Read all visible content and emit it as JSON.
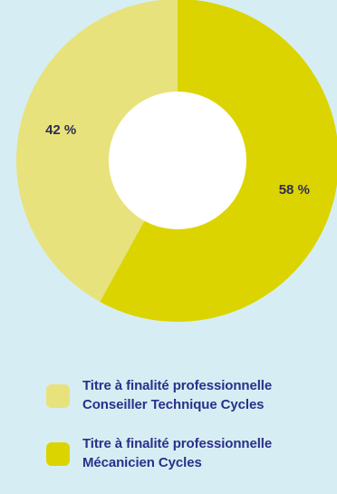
{
  "chart_data": {
    "type": "pie",
    "donut": true,
    "title": "",
    "series": [
      {
        "name": "Titre à finalité professionnelle Conseiller Technique Cycles",
        "value": 42,
        "label": "42 %",
        "color": "#e8e27d"
      },
      {
        "name": "Titre à finalité professionnelle Mécanicien Cycles",
        "value": 58,
        "label": "58 %",
        "color": "#dcd400"
      }
    ],
    "legend_position": "bottom"
  },
  "legend": [
    {
      "line1": "Titre à finalité professionnelle",
      "line2": "Conseiller Technique Cycles",
      "color": "#e8e27d"
    },
    {
      "line1": "Titre à finalité professionnelle",
      "line2": "Mécanicien Cycles",
      "color": "#dcd400"
    }
  ],
  "colors": {
    "background": "#d6eef3",
    "hole": "#ffffff",
    "label": "#2f2d56",
    "legend_text": "#2b2f8a"
  }
}
